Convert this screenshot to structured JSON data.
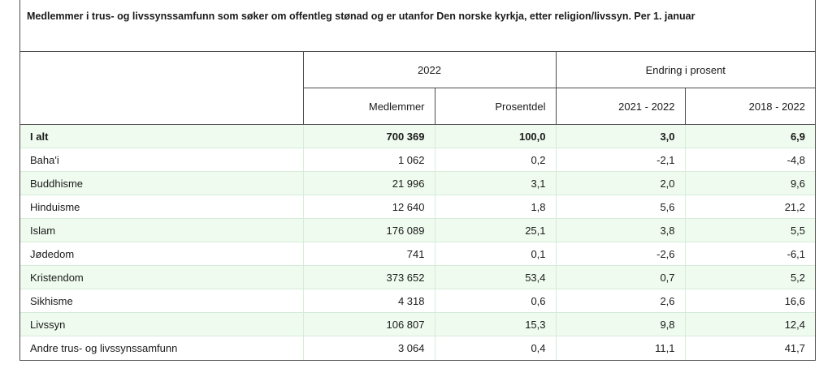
{
  "table": {
    "caption": "Medlemmer i trus- og livssynssamfunn som søker om offentleg stønad og er utanfor Den norske kyrkja, etter religion/livssyn. Per 1. januar",
    "group_headers": {
      "year": "2022",
      "change": "Endring i prosent"
    },
    "columns": [
      "Medlemmer",
      "Prosentdel",
      "2021 - 2022",
      "2018 - 2022"
    ],
    "rows": [
      {
        "label": "I alt",
        "members": "700 369",
        "share": "100,0",
        "chg_1y": "3,0",
        "chg_4y": "6,9"
      },
      {
        "label": "Baha'i",
        "members": "1 062",
        "share": "0,2",
        "chg_1y": "-2,1",
        "chg_4y": "-4,8"
      },
      {
        "label": "Buddhisme",
        "members": "21 996",
        "share": "3,1",
        "chg_1y": "2,0",
        "chg_4y": "9,6"
      },
      {
        "label": "Hinduisme",
        "members": "12 640",
        "share": "1,8",
        "chg_1y": "5,6",
        "chg_4y": "21,2"
      },
      {
        "label": "Islam",
        "members": "176 089",
        "share": "25,1",
        "chg_1y": "3,8",
        "chg_4y": "5,5"
      },
      {
        "label": "Jødedom",
        "members": "741",
        "share": "0,1",
        "chg_1y": "-2,6",
        "chg_4y": "-6,1"
      },
      {
        "label": "Kristendom",
        "members": "373 652",
        "share": "53,4",
        "chg_1y": "0,7",
        "chg_4y": "5,2"
      },
      {
        "label": "Sikhisme",
        "members": "4 318",
        "share": "0,6",
        "chg_1y": "2,6",
        "chg_4y": "16,6"
      },
      {
        "label": "Livssyn",
        "members": "106 807",
        "share": "15,3",
        "chg_1y": "9,8",
        "chg_4y": "12,4"
      },
      {
        "label": "Andre trus- og livssynssamfunn",
        "members": "3 064",
        "share": "0,4",
        "chg_1y": "11,1",
        "chg_4y": "41,7"
      }
    ]
  },
  "colors": {
    "row_highlight": "#effbef",
    "border": "#4b4b4b"
  }
}
